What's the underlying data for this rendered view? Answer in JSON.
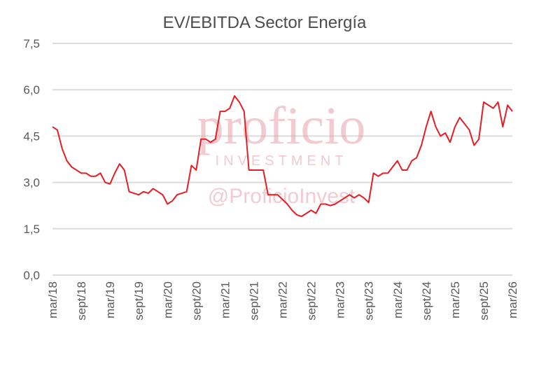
{
  "chart_data": {
    "type": "line",
    "title": "EV/EBITDA Sector Energía",
    "xlabel": "",
    "ylabel": "",
    "ylim": [
      0,
      7.5
    ],
    "y_ticks": [
      "0,0",
      "1,5",
      "3,0",
      "4,5",
      "6,0",
      "7,5"
    ],
    "x_ticks": [
      "mar/18",
      "sept/18",
      "mar/19",
      "sept/19",
      "mar/20",
      "sept/20",
      "mar/21",
      "sept/21",
      "mar/22",
      "sept/22",
      "mar/23",
      "sept/23",
      "mar/24",
      "sept/24",
      "mar/25",
      "sept/25",
      "mar/26"
    ],
    "grid": true,
    "legend": "none",
    "series": [
      {
        "color": "#e31e24",
        "x": [
          "mar/18",
          "abr/18",
          "may/18",
          "jun/18",
          "jul/18",
          "ago/18",
          "sept/18",
          "oct/18",
          "nov/18",
          "dic/18",
          "ene/19",
          "feb/19",
          "mar/19",
          "abr/19",
          "may/19",
          "jun/19",
          "jul/19",
          "ago/19",
          "sept/19",
          "oct/19",
          "nov/19",
          "dic/19",
          "ene/20",
          "feb/20",
          "mar/20",
          "abr/20",
          "may/20",
          "jun/20",
          "jul/20",
          "ago/20",
          "sept/20",
          "oct/20",
          "nov/20",
          "dic/20",
          "ene/21",
          "feb/21",
          "mar/21",
          "abr/21",
          "may/21",
          "jun/21",
          "jul/21",
          "ago/21",
          "sept/21",
          "oct/21",
          "nov/21",
          "dic/21",
          "ene/22",
          "feb/22",
          "mar/22",
          "abr/22",
          "may/22",
          "jun/22",
          "jul/22",
          "ago/22",
          "sept/22",
          "oct/22",
          "nov/22",
          "dic/22",
          "ene/23",
          "feb/23",
          "mar/23",
          "abr/23",
          "may/23",
          "jun/23",
          "jul/23",
          "ago/23",
          "sept/23",
          "oct/23",
          "nov/23",
          "dic/23",
          "ene/24",
          "feb/24",
          "mar/24",
          "abr/24",
          "may/24",
          "jun/24",
          "jul/24",
          "ago/24",
          "sept/24",
          "oct/24",
          "nov/24",
          "dic/24",
          "ene/25",
          "feb/25",
          "mar/25",
          "abr/25",
          "may/25",
          "jun/25",
          "jul/25",
          "ago/25",
          "sept/25",
          "oct/25",
          "nov/25",
          "dic/25",
          "ene/26",
          "feb/26",
          "mar/26"
        ],
        "values": [
          4.8,
          4.7,
          4.1,
          3.7,
          3.5,
          3.4,
          3.3,
          3.3,
          3.2,
          3.2,
          3.3,
          3.0,
          2.95,
          3.3,
          3.6,
          3.4,
          2.7,
          2.65,
          2.6,
          2.7,
          2.65,
          2.8,
          2.7,
          2.6,
          2.3,
          2.4,
          2.6,
          2.65,
          2.7,
          3.55,
          3.4,
          4.4,
          4.4,
          4.3,
          4.4,
          5.3,
          5.3,
          5.4,
          5.8,
          5.6,
          5.3,
          3.4,
          3.4,
          3.4,
          3.4,
          2.6,
          2.6,
          2.6,
          2.45,
          2.3,
          2.1,
          1.95,
          1.9,
          2.0,
          2.1,
          2.0,
          2.3,
          2.3,
          2.25,
          2.3,
          2.4,
          2.5,
          2.6,
          2.5,
          2.6,
          2.5,
          2.35,
          3.3,
          3.2,
          3.3,
          3.3,
          3.5,
          3.7,
          3.4,
          3.4,
          3.7,
          3.8,
          4.2,
          4.8,
          5.3,
          4.8,
          4.5,
          4.6,
          4.3,
          4.8,
          5.1,
          4.9,
          4.7,
          4.2,
          4.4,
          5.6,
          5.5,
          5.4,
          5.6,
          4.8,
          5.5,
          5.3
        ]
      }
    ]
  },
  "watermark": {
    "brand": "proficio",
    "subtitle": "INVESTMENT",
    "handle": "@ProficioInvest"
  }
}
